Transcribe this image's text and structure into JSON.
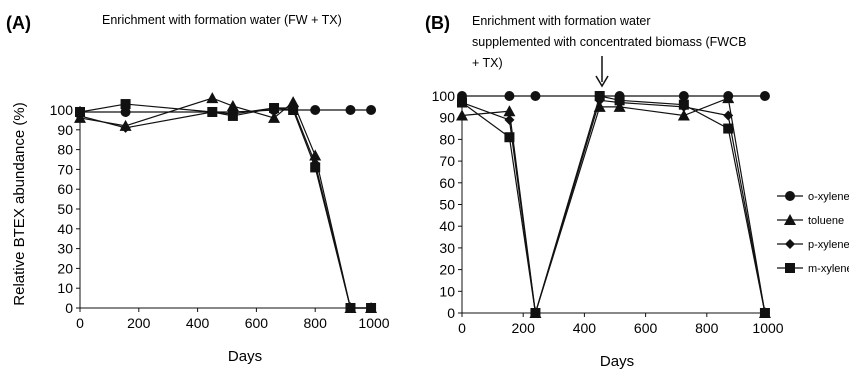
{
  "chart_data": [
    {
      "type": "line",
      "panel_label": "(A)",
      "title": "Enrichment with formation water (FW + TX)",
      "xlabel": "Days",
      "ylabel": "Relative BTEX abundance (%)",
      "xlim": [
        0,
        1000
      ],
      "ylim": [
        0,
        100
      ],
      "x_ticks": [
        "0",
        "200",
        "400",
        "600",
        "800",
        "1000"
      ],
      "y_ticks": [
        "0",
        "10",
        "20",
        "30",
        "40",
        "50",
        "60",
        "70",
        "80",
        "90",
        "100"
      ],
      "grid": false,
      "series": [
        {
          "name": "o-xylene",
          "marker": "circle",
          "x": [
            0,
            155,
            450,
            520,
            660,
            725,
            800,
            920,
            990
          ],
          "y": [
            99,
            99,
            99,
            99,
            100,
            100,
            100,
            100,
            100
          ]
        },
        {
          "name": "toluene",
          "marker": "triangle",
          "x": [
            0,
            155,
            450,
            520,
            660,
            725,
            800,
            920,
            990
          ],
          "y": [
            96,
            92,
            106,
            102,
            96,
            104,
            77,
            0,
            0
          ]
        },
        {
          "name": "p-xylene",
          "marker": "diamond",
          "x": [
            0,
            155,
            450,
            520,
            660,
            725,
            800,
            920,
            990
          ],
          "y": [
            97,
            91,
            99,
            98,
            101,
            101,
            73,
            0,
            0
          ]
        },
        {
          "name": "m-xylene",
          "marker": "square",
          "x": [
            0,
            155,
            450,
            520,
            660,
            725,
            800,
            920,
            990
          ],
          "y": [
            99,
            103,
            99,
            97,
            101,
            100,
            71,
            0,
            0
          ]
        }
      ]
    },
    {
      "type": "line",
      "panel_label": "(B)",
      "title_lines": [
        "Enrichment with formation water",
        "supplemented with concentrated biomass (FWCB",
        "+ TX)"
      ],
      "xlabel": "Days",
      "xlim": [
        0,
        1000
      ],
      "ylim": [
        0,
        100
      ],
      "x_ticks": [
        "0",
        "200",
        "400",
        "600",
        "800",
        "1000"
      ],
      "y_ticks": [
        "0",
        "10",
        "20",
        "30",
        "40",
        "50",
        "60",
        "70",
        "80",
        "90",
        "100"
      ],
      "grid": false,
      "annotation": "arrow pointing down at day 450",
      "legend_placement": "right",
      "series": [
        {
          "name": "o-xylene",
          "marker": "circle",
          "x": [
            0,
            155,
            240,
            450,
            515,
            725,
            870,
            990
          ],
          "y": [
            100,
            100,
            100,
            100,
            100,
            100,
            100,
            100
          ]
        },
        {
          "name": "toluene",
          "marker": "triangle",
          "x": [
            0,
            155,
            240,
            450,
            515,
            725,
            870,
            990
          ],
          "y": [
            91,
            93,
            0,
            95,
            95,
            91,
            99,
            0
          ]
        },
        {
          "name": "p-xylene",
          "marker": "diamond",
          "x": [
            0,
            155,
            240,
            450,
            515,
            725,
            870,
            990
          ],
          "y": [
            97,
            89,
            0,
            98,
            97,
            95,
            91,
            0
          ]
        },
        {
          "name": "m-xylene",
          "marker": "square",
          "x": [
            0,
            155,
            240,
            450,
            515,
            725,
            870,
            990
          ],
          "y": [
            97,
            81,
            0,
            100,
            98,
            96,
            85,
            0
          ]
        }
      ]
    }
  ]
}
